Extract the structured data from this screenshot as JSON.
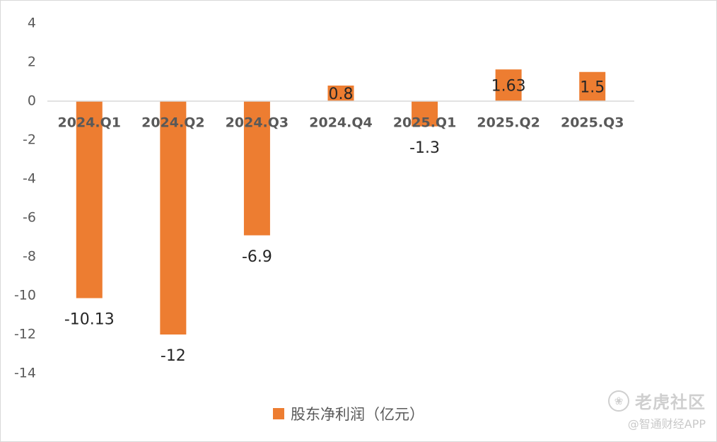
{
  "chart_data": {
    "type": "bar",
    "categories": [
      "2024.Q1",
      "2024.Q2",
      "2024.Q3",
      "2024.Q4",
      "2025.Q1",
      "2025.Q2",
      "2025.Q3"
    ],
    "series": [
      {
        "name": "股东净利润（亿元）",
        "values": [
          -10.13,
          -12,
          -6.9,
          0.8,
          -1.3,
          1.63,
          1.5
        ],
        "data_labels": [
          "-10.13",
          "-12",
          "-6.9",
          "0.8",
          "-1.3",
          "1.63",
          "1.5"
        ],
        "color": "#ED7D31"
      }
    ],
    "ylim": [
      -14,
      4
    ],
    "yticks": [
      "4",
      "2",
      "0",
      "-2",
      "-4",
      "-6",
      "-8",
      "-10",
      "-12",
      "-14"
    ],
    "grid": false,
    "legend_position": "bottom",
    "title": "",
    "xlabel": "",
    "ylabel": ""
  },
  "watermark": {
    "title": "老虎社区",
    "subtitle": "@智通财经APP",
    "logo_icon": "tiger-logo-icon"
  }
}
